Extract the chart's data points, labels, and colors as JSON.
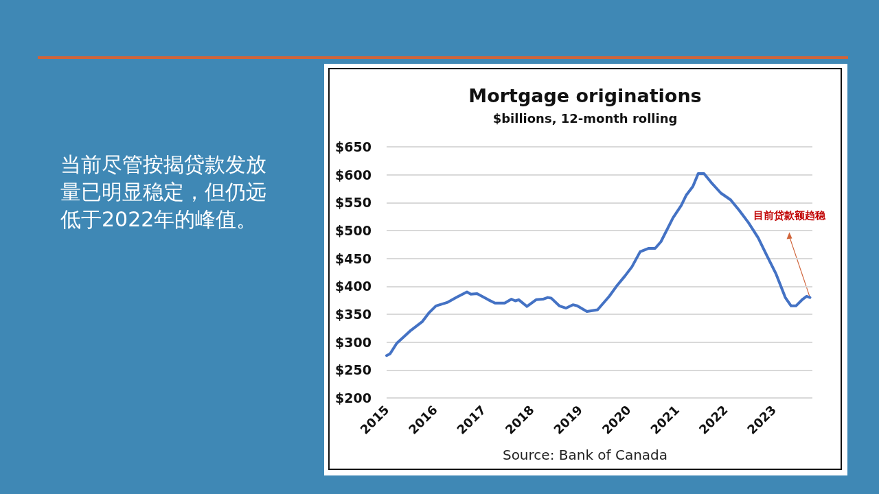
{
  "chart_data": {
    "type": "line",
    "title": "Mortgage originations",
    "subtitle": "$billions, 12-month rolling",
    "x": [
      2015.0,
      2015.07,
      2015.21,
      2015.35,
      2015.5,
      2015.74,
      2015.88,
      2016.02,
      2016.25,
      2016.44,
      2016.66,
      2016.74,
      2016.87,
      2017.1,
      2017.24,
      2017.44,
      2017.58,
      2017.66,
      2017.73,
      2017.9,
      2018.09,
      2018.23,
      2018.33,
      2018.4,
      2018.57,
      2018.71,
      2018.85,
      2018.94,
      2019.14,
      2019.36,
      2019.6,
      2019.75,
      2019.93,
      2020.07,
      2020.24,
      2020.41,
      2020.55,
      2020.67,
      2020.92,
      2021.09,
      2021.19,
      2021.33,
      2021.44,
      2021.56,
      2021.73,
      2021.91,
      2022.11,
      2022.29,
      2022.48,
      2022.68,
      2022.86,
      2023.05,
      2023.24,
      2023.36,
      2023.46,
      2023.6,
      2023.68,
      2023.75
    ],
    "series": [
      {
        "color": "#4472c4",
        "values": [
          276,
          279,
          298,
          309,
          321,
          337,
          353,
          365,
          371,
          380,
          390,
          386,
          387,
          376,
          370,
          370,
          377,
          374,
          376,
          364,
          376,
          377,
          380,
          379,
          365,
          361,
          367,
          365,
          355,
          358,
          382,
          400,
          419,
          435,
          462,
          468,
          468,
          480,
          523,
          545,
          563,
          579,
          602,
          602,
          584,
          567,
          555,
          536,
          514,
          487,
          455,
          422,
          380,
          365,
          365,
          377,
          382,
          380
        ]
      }
    ],
    "xlim": [
      2015,
      2023.8
    ],
    "xticks": [
      2015,
      2016,
      2017,
      2018,
      2019,
      2020,
      2021,
      2022,
      2023
    ],
    "ylim": [
      200,
      650
    ],
    "yticks": [
      {
        "value": 200,
        "label": "$200"
      },
      {
        "value": 250,
        "label": "$250"
      },
      {
        "value": 300,
        "label": "$300"
      },
      {
        "value": 350,
        "label": "$350"
      },
      {
        "value": 400,
        "label": "$400"
      },
      {
        "value": 450,
        "label": "$450"
      },
      {
        "value": 500,
        "label": "$500"
      },
      {
        "value": 550,
        "label": "$550"
      },
      {
        "value": 600,
        "label": "$600"
      },
      {
        "value": 650,
        "label": "$650"
      }
    ],
    "grid": "y",
    "marker": "none",
    "line_style": "solid",
    "annotations": [
      "当前尽管按揭贷款发放量已明显稳定，但仍远低于2022年的峰值。",
      "Source: Bank of Canada",
      "目前贷款额趋稳"
    ]
  }
}
